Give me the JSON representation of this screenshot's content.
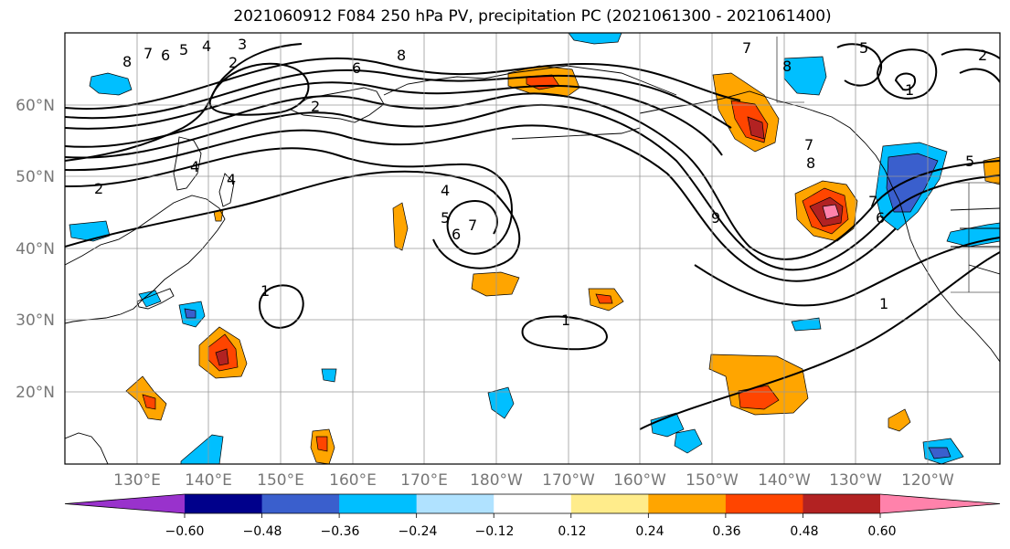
{
  "title": "2021060912 F084 250 hPa PV, precipitation PC (2021061300 - 2021061400)",
  "lat_labels": [
    "60°N",
    "50°N",
    "40°N",
    "30°N",
    "20°N"
  ],
  "lon_labels": [
    "130°E",
    "140°E",
    "150°E",
    "160°E",
    "170°E",
    "180°W",
    "170°W",
    "160°W",
    "150°W",
    "140°W",
    "130°W",
    "120°W"
  ],
  "colorbar": {
    "colors": [
      "#9932cc",
      "#00008b",
      "#3a5fcd",
      "#00bfff",
      "#b0e2ff",
      "#ffffff",
      "#ffec8b",
      "#ffa500",
      "#ff4500",
      "#b22222",
      "#ff82ab"
    ],
    "tick_labels": [
      "−0.60",
      "−0.48",
      "−0.36",
      "−0.24",
      "−0.12",
      "0.12",
      "0.24",
      "0.36",
      "0.48",
      "0.60"
    ]
  },
  "contour_labels": [
    "8",
    "7",
    "6",
    "5",
    "4",
    "3",
    "2",
    "2",
    "4",
    "4",
    "2",
    "1",
    "6",
    "8",
    "4",
    "5",
    "6",
    "7",
    "1",
    "7",
    "8",
    "9",
    "7",
    "1",
    "5",
    "5",
    "2",
    "8",
    "7",
    "6",
    "1"
  ]
}
